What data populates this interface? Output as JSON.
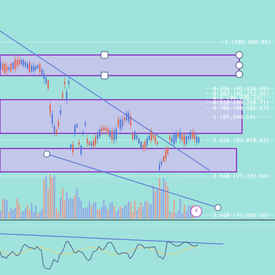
{
  "colors": {
    "background": "#9fe3dc",
    "zone_fill": "#c3c8ea",
    "zone_stroke": "#8a22c0",
    "trendline": "#5a74d6",
    "bull": "#5a7bd6",
    "bear": "#e06a5a",
    "fib_line": "#ffffff",
    "fib_text": "#ffffff",
    "handle": "#ffffff",
    "osc_line": "#4a5a8a",
    "osc_signal": "#e8d27a"
  },
  "fib_labels": {
    "l_neg1": "-1 (100,360.81)",
    "l_0236": "0.236 (92,426.99)",
    "l_0382": "0.382 (91,213.45)",
    "l_05": "0.5 (90,230.11)",
    "l_0618": "0.618 (89,228.77)",
    "l_0786": "0.786 (88,185.57)",
    "l_1": "1 (87,840.54)",
    "l_1618": "1.618 (83,979.63)",
    "l_2618": "2.618 (77,722.50)",
    "l_3618": "3.618 (71,465.36)"
  },
  "icons": {
    "lightning": "⚡"
  }
}
